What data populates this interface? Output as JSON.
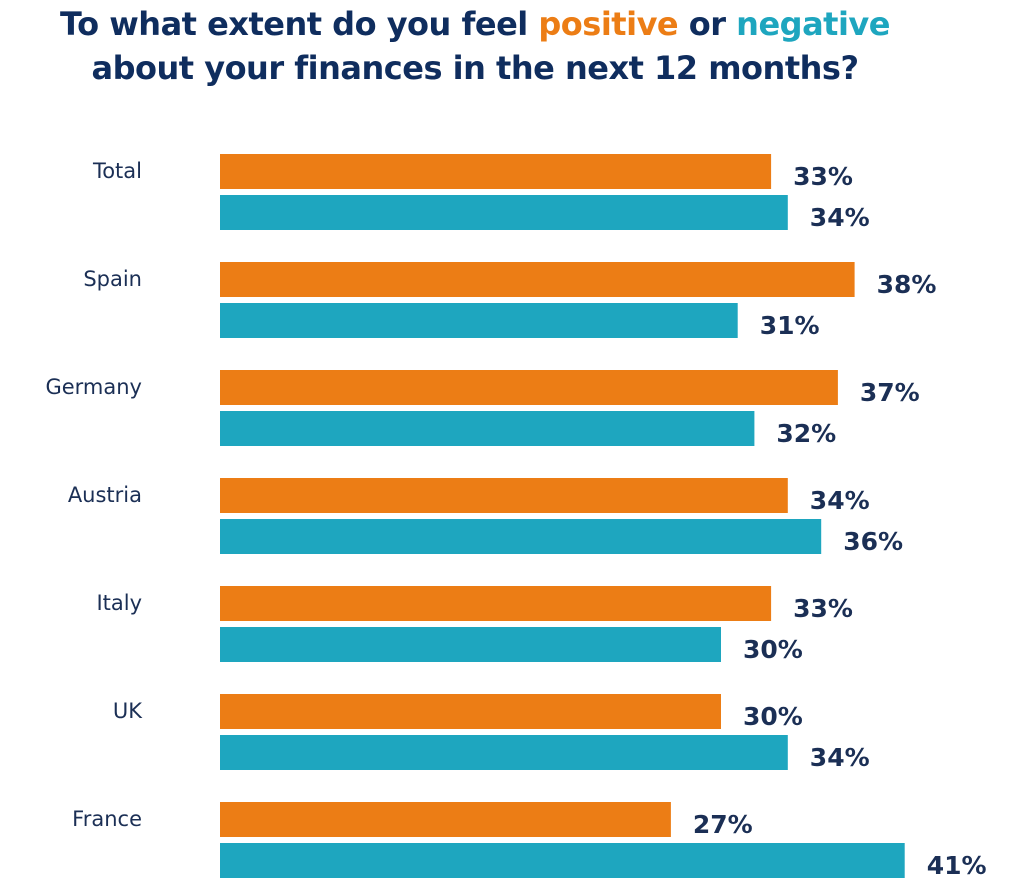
{
  "title": {
    "line1_prefix": "To what extent do you feel ",
    "positive_word": "positive",
    "or_word": " or ",
    "negative_word": "negative",
    "line2": "about your finances in the next 12 months?"
  },
  "colors": {
    "positive": "#ec7d15",
    "negative": "#1ea6bf",
    "title": "#0f2d5e",
    "labels": "#1b2f55"
  },
  "chart_data": {
    "type": "bar",
    "orientation": "horizontal",
    "categories": [
      "Total",
      "Spain",
      "Germany",
      "Austria",
      "Italy",
      "UK",
      "France"
    ],
    "series": [
      {
        "name": "positive",
        "values": [
          33,
          38,
          37,
          34,
          33,
          30,
          27
        ]
      },
      {
        "name": "negative",
        "values": [
          34,
          31,
          32,
          36,
          30,
          34,
          41
        ]
      }
    ],
    "value_suffix": "%",
    "grid": false,
    "legend": "none (series named in title colors)"
  }
}
